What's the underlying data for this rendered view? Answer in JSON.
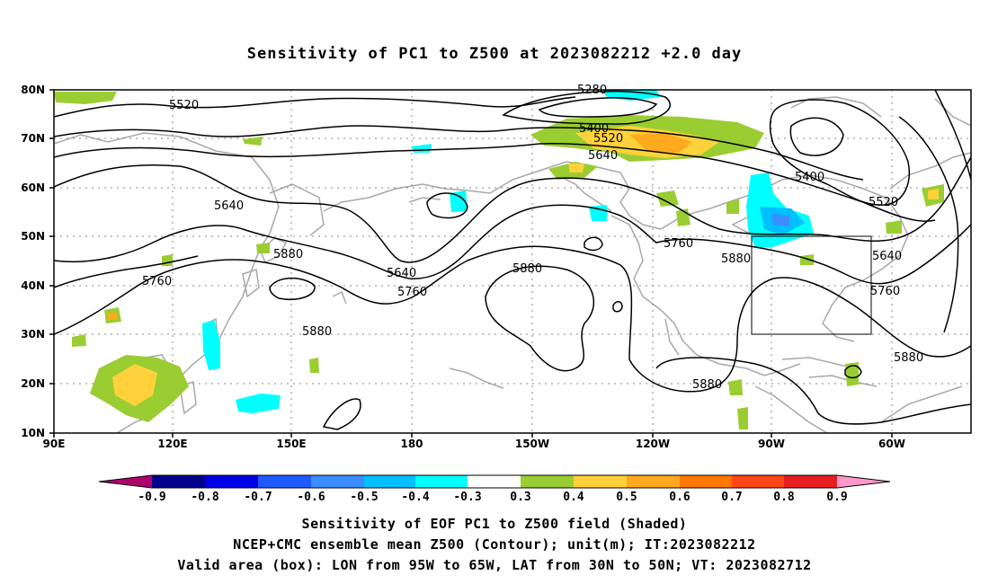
{
  "title": "Sensitivity of PC1 to Z500 at 2023082212 +2.0 day",
  "lat_labels": [
    "80N",
    "70N",
    "60N",
    "50N",
    "40N",
    "30N",
    "20N",
    "10N"
  ],
  "lon_labels": [
    "90E",
    "120E",
    "150E",
    "180",
    "150W",
    "120W",
    "90W",
    "60W"
  ],
  "contour_labels": [
    "5520",
    "5280",
    "5400",
    "5520",
    "5640",
    "5640",
    "5400",
    "5520",
    "5880",
    "5760",
    "5640",
    "5760",
    "5880",
    "5760",
    "5640",
    "5880",
    "5760",
    "5880",
    "5880",
    "5880"
  ],
  "colorbar": {
    "colors": [
      "#b0006e",
      "#00008c",
      "#0000e6",
      "#1e5aff",
      "#3a8cff",
      "#00bfff",
      "#00ffff",
      "#ffffff",
      "#9acd32",
      "#ffd23c",
      "#ffaa1e",
      "#ff7800",
      "#ff4614",
      "#e61e1e",
      "#ff0000",
      "#ff99cc"
    ],
    "labels": [
      "-0.9",
      "-0.8",
      "-0.7",
      "-0.6",
      "-0.5",
      "-0.4",
      "-0.3",
      "0.3",
      "0.4",
      "0.5",
      "0.6",
      "0.7",
      "0.8",
      "0.9"
    ]
  },
  "captions": [
    "Sensitivity of EOF PC1 to Z500 field (Shaded)",
    "NCEP+CMC ensemble mean Z500 (Contour); unit(m); IT:2023082212",
    "Valid area (box): LON from 95W to 65W, LAT from 30N to 50N; VT: 2023082712"
  ],
  "valid_box": {
    "lon_west": -95,
    "lon_east": -65,
    "lat_south": 30,
    "lat_north": 50
  }
}
